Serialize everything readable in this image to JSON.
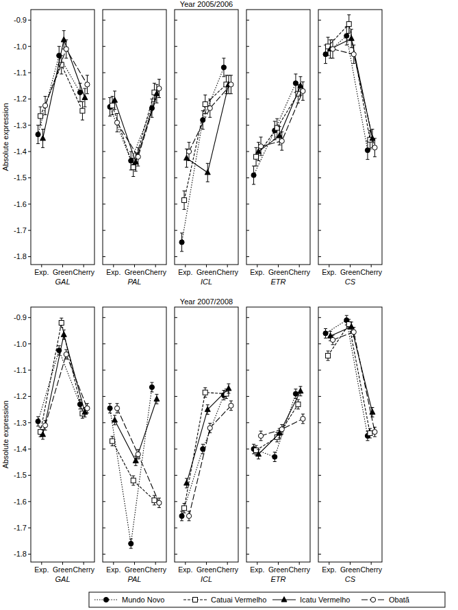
{
  "chart_data": [
    {
      "type": "line",
      "y_label": "Absolute expression",
      "x_label": "GAL",
      "categories": [
        "Exp.",
        "Green",
        "Cherry"
      ],
      "ylim": [
        -1.83,
        -0.86
      ],
      "yticks": [
        -1.8,
        -1.7,
        -1.6,
        -1.5,
        -1.4,
        -1.3,
        -1.2,
        -1.1,
        {
          "value": -1,
          "label": "-1.0"
        },
        -0.9
      ],
      "series": [
        {
          "name": "Mundo Novo",
          "color": "#000000",
          "marker": "filled-circle",
          "line_style": "dotted",
          "values": [
            -1.335,
            -1.035,
            -1.175
          ],
          "errors": [
            0.035,
            0.035,
            0.035
          ]
        },
        {
          "name": "Catuai Vermelho",
          "color": "#000000",
          "marker": "open-square",
          "line_style": "dashed",
          "values": [
            -1.265,
            -1.07,
            -1.245
          ],
          "errors": [
            0.035,
            0.035,
            0.035
          ]
        },
        {
          "name": "Icatu Vermelho",
          "color": "#000000",
          "marker": "filled-triangle",
          "line_style": "solid",
          "values": [
            -1.35,
            -0.975,
            -1.195
          ],
          "errors": [
            0.035,
            0.035,
            0.035
          ]
        },
        {
          "name": "Obatã",
          "color": "#000000",
          "marker": "open-circle",
          "line_style": "long-dash",
          "values": [
            -1.225,
            -1.01,
            -1.145
          ],
          "errors": [
            0.035,
            0.035,
            0.035
          ]
        }
      ]
    },
    {
      "type": "line",
      "x_label": "PAL",
      "categories": [
        "Exp.",
        "Green",
        "Cherry"
      ],
      "ylim": [
        -1.83,
        -0.86
      ],
      "yticks": [
        -1.8,
        -1.7,
        -1.6,
        -1.5,
        -1.4,
        -1.3,
        -1.2,
        -1.1,
        {
          "value": -1,
          "label": "-1.0"
        },
        -0.9
      ],
      "tick_labels": "x",
      "series": [
        {
          "name": "Mundo Novo",
          "color": "#000000",
          "marker": "filled-circle",
          "line_style": "dotted",
          "values": [
            -1.23,
            -1.435,
            -1.235
          ],
          "errors": [
            0.035,
            0.035,
            0.035
          ]
        },
        {
          "name": "Catuai Vermelho",
          "color": "#000000",
          "marker": "open-square",
          "line_style": "dashed",
          "values": [
            -1.225,
            -1.46,
            -1.175
          ],
          "errors": [
            0.035,
            0.035,
            0.035
          ]
        },
        {
          "name": "Icatu Vermelho",
          "color": "#000000",
          "marker": "filled-triangle",
          "line_style": "solid",
          "values": [
            -1.205,
            -1.44,
            -1.18
          ],
          "errors": [
            0.035,
            0.035,
            0.035
          ]
        },
        {
          "name": "Obatã",
          "color": "#000000",
          "marker": "open-circle",
          "line_style": "long-dash",
          "values": [
            -1.29,
            -1.42,
            -1.16
          ],
          "errors": [
            0.035,
            0.035,
            0.035
          ]
        }
      ]
    },
    {
      "type": "line",
      "title": "Year 2005/2006",
      "x_label": "ICL",
      "categories": [
        "Exp.",
        "Green",
        "Cherry"
      ],
      "ylim": [
        -1.83,
        -0.86
      ],
      "yticks": [
        -1.8,
        -1.7,
        -1.6,
        -1.5,
        -1.4,
        -1.3,
        -1.2,
        -1.1,
        {
          "value": -1,
          "label": "-1.0"
        },
        -0.9
      ],
      "tick_labels": "x",
      "series": [
        {
          "name": "Mundo Novo",
          "color": "#000000",
          "marker": "filled-circle",
          "line_style": "dotted",
          "values": [
            -1.745,
            -1.28,
            -1.08
          ],
          "errors": [
            0.035,
            0.035,
            0.035
          ]
        },
        {
          "name": "Catuai Vermelho",
          "color": "#000000",
          "marker": "open-square",
          "line_style": "dashed",
          "values": [
            -1.585,
            -1.22,
            -1.145
          ],
          "errors": [
            0.035,
            0.035,
            0.035
          ]
        },
        {
          "name": "Icatu Vermelho",
          "color": "#000000",
          "marker": "filled-triangle",
          "line_style": "solid",
          "values": [
            -1.425,
            -1.48,
            -1.145
          ],
          "errors": [
            0.035,
            0.035,
            0.035
          ]
        },
        {
          "name": "Obatã",
          "color": "#000000",
          "marker": "open-circle",
          "line_style": "long-dash",
          "values": [
            -1.4,
            -1.235,
            -1.145
          ],
          "errors": [
            0.035,
            0.035,
            0.035
          ]
        }
      ]
    },
    {
      "type": "line",
      "x_label": "ETR",
      "categories": [
        "Exp.",
        "Green",
        "Cherry"
      ],
      "ylim": [
        -1.83,
        -0.86
      ],
      "yticks": [
        -1.8,
        -1.7,
        -1.6,
        -1.5,
        -1.4,
        -1.3,
        -1.2,
        -1.1,
        {
          "value": -1,
          "label": "-1.0"
        },
        -0.9
      ],
      "tick_labels": "x",
      "series": [
        {
          "name": "Mundo Novo",
          "color": "#000000",
          "marker": "filled-circle",
          "line_style": "dotted",
          "values": [
            -1.49,
            -1.32,
            -1.14
          ],
          "errors": [
            0.035,
            0.035,
            0.035
          ]
        },
        {
          "name": "Catuai Vermelho",
          "color": "#000000",
          "marker": "open-square",
          "line_style": "dashed",
          "values": [
            -1.42,
            -1.31,
            -1.18
          ],
          "errors": [
            0.035,
            0.035,
            0.035
          ]
        },
        {
          "name": "Icatu Vermelho",
          "color": "#000000",
          "marker": "filled-triangle",
          "line_style": "solid",
          "values": [
            -1.4,
            -1.34,
            -1.15
          ],
          "errors": [
            0.035,
            0.035,
            0.035
          ]
        },
        {
          "name": "Obatã",
          "color": "#000000",
          "marker": "open-circle",
          "line_style": "long-dash",
          "values": [
            -1.38,
            -1.36,
            -1.17
          ],
          "errors": [
            0.035,
            0.035,
            0.035
          ]
        }
      ]
    },
    {
      "type": "line",
      "x_label": "CS",
      "categories": [
        "Exp.",
        "Green",
        "Cherry"
      ],
      "ylim": [
        -1.83,
        -0.86
      ],
      "yticks": [
        -1.8,
        -1.7,
        -1.6,
        -1.5,
        -1.4,
        -1.3,
        -1.2,
        -1.1,
        {
          "value": -1,
          "label": "-1.0"
        },
        -0.9
      ],
      "tick_labels": "x",
      "series": [
        {
          "name": "Mundo Novo",
          "color": "#000000",
          "marker": "filled-circle",
          "line_style": "dotted",
          "values": [
            -1.03,
            -0.96,
            -1.395
          ],
          "errors": [
            0.035,
            0.035,
            0.035
          ]
        },
        {
          "name": "Catuai Vermelho",
          "color": "#000000",
          "marker": "open-square",
          "line_style": "dashed",
          "values": [
            -1.0,
            -0.915,
            -1.355
          ],
          "errors": [
            0.035,
            0.035,
            0.035
          ]
        },
        {
          "name": "Icatu Vermelho",
          "color": "#000000",
          "marker": "filled-triangle",
          "line_style": "solid",
          "values": [
            -1.01,
            -0.97,
            -1.35
          ],
          "errors": [
            0.035,
            0.035,
            0.035
          ]
        },
        {
          "name": "Obatã",
          "color": "#000000",
          "marker": "open-circle",
          "line_style": "long-dash",
          "values": [
            -1.01,
            -1.03,
            -1.385
          ],
          "errors": [
            0.035,
            0.035,
            0.035
          ]
        }
      ]
    },
    {
      "type": "line",
      "y_label": "Absolute expression",
      "x_label": "GAL",
      "categories": [
        "Exp.",
        "Green",
        "Cherry"
      ],
      "ylim": [
        -1.83,
        -0.86
      ],
      "yticks": [
        -1.8,
        -1.7,
        -1.6,
        -1.5,
        -1.4,
        -1.3,
        -1.2,
        -1.1,
        {
          "value": -1,
          "label": "-1.0"
        },
        -0.9
      ],
      "series": [
        {
          "name": "Mundo Novo",
          "color": "#000000",
          "marker": "filled-circle",
          "line_style": "dotted",
          "values": [
            -1.295,
            -1.025,
            -1.23
          ],
          "errors": [
            0.018,
            0.018,
            0.018
          ]
        },
        {
          "name": "Catuai Vermelho",
          "color": "#000000",
          "marker": "open-square",
          "line_style": "dashed",
          "values": [
            -1.335,
            -0.92,
            -1.265
          ],
          "errors": [
            0.018,
            0.018,
            0.018
          ]
        },
        {
          "name": "Icatu Vermelho",
          "color": "#000000",
          "marker": "filled-triangle",
          "line_style": "solid",
          "values": [
            -1.345,
            -0.965,
            -1.26
          ],
          "errors": [
            0.018,
            0.018,
            0.018
          ]
        },
        {
          "name": "Obatã",
          "color": "#000000",
          "marker": "open-circle",
          "line_style": "long-dash",
          "values": [
            -1.31,
            -1.04,
            -1.245
          ],
          "errors": [
            0.018,
            0.018,
            0.018
          ]
        }
      ]
    },
    {
      "type": "line",
      "x_label": "PAL",
      "categories": [
        "Exp.",
        "Green",
        "Cherry"
      ],
      "ylim": [
        -1.83,
        -0.86
      ],
      "yticks": [
        -1.8,
        -1.7,
        -1.6,
        -1.5,
        -1.4,
        -1.3,
        -1.2,
        -1.1,
        {
          "value": -1,
          "label": "-1.0"
        },
        -0.9
      ],
      "tick_labels": "x",
      "series": [
        {
          "name": "Mundo Novo",
          "color": "#000000",
          "marker": "filled-circle",
          "line_style": "dotted",
          "values": [
            -1.245,
            -1.76,
            -1.165
          ],
          "errors": [
            0.018,
            0.018,
            0.018
          ]
        },
        {
          "name": "Catuai Vermelho",
          "color": "#000000",
          "marker": "open-square",
          "line_style": "dashed",
          "values": [
            -1.37,
            -1.52,
            -1.595
          ],
          "errors": [
            0.018,
            0.018,
            0.018
          ]
        },
        {
          "name": "Icatu Vermelho",
          "color": "#000000",
          "marker": "filled-triangle",
          "line_style": "solid",
          "values": [
            -1.29,
            -1.445,
            -1.21
          ],
          "errors": [
            0.018,
            0.018,
            0.018
          ]
        },
        {
          "name": "Obatã",
          "color": "#000000",
          "marker": "open-circle",
          "line_style": "long-dash",
          "values": [
            -1.245,
            -1.42,
            -1.605
          ],
          "errors": [
            0.018,
            0.018,
            0.018
          ]
        }
      ]
    },
    {
      "type": "line",
      "title": "Year 2007/2008",
      "x_label": "ICL",
      "categories": [
        "Exp.",
        "Green",
        "Cherry"
      ],
      "ylim": [
        -1.83,
        -0.86
      ],
      "yticks": [
        -1.8,
        -1.7,
        -1.6,
        -1.5,
        -1.4,
        -1.3,
        -1.2,
        -1.1,
        {
          "value": -1,
          "label": "-1.0"
        },
        -0.9
      ],
      "tick_labels": "x",
      "series": [
        {
          "name": "Mundo Novo",
          "color": "#000000",
          "marker": "filled-circle",
          "line_style": "dotted",
          "values": [
            -1.655,
            -1.4,
            -1.195
          ],
          "errors": [
            0.018,
            0.018,
            0.018
          ]
        },
        {
          "name": "Catuai Vermelho",
          "color": "#000000",
          "marker": "open-square",
          "line_style": "dashed",
          "values": [
            -1.625,
            -1.185,
            -1.19
          ],
          "errors": [
            0.018,
            0.018,
            0.018
          ]
        },
        {
          "name": "Icatu Vermelho",
          "color": "#000000",
          "marker": "filled-triangle",
          "line_style": "solid",
          "values": [
            -1.53,
            -1.25,
            -1.17
          ],
          "errors": [
            0.018,
            0.018,
            0.018
          ]
        },
        {
          "name": "Obatã",
          "color": "#000000",
          "marker": "open-circle",
          "line_style": "long-dash",
          "values": [
            -1.655,
            -1.32,
            -1.235
          ],
          "errors": [
            0.018,
            0.018,
            0.018
          ]
        }
      ]
    },
    {
      "type": "line",
      "x_label": "ETR",
      "categories": [
        "Exp.",
        "Green",
        "Cherry"
      ],
      "ylim": [
        -1.83,
        -0.86
      ],
      "yticks": [
        -1.8,
        -1.7,
        -1.6,
        -1.5,
        -1.4,
        -1.3,
        -1.2,
        -1.1,
        {
          "value": -1,
          "label": "-1.0"
        },
        -0.9
      ],
      "tick_labels": "x",
      "series": [
        {
          "name": "Mundo Novo",
          "color": "#000000",
          "marker": "filled-circle",
          "line_style": "dotted",
          "values": [
            -1.4,
            -1.43,
            -1.19
          ],
          "errors": [
            0.018,
            0.018,
            0.018
          ]
        },
        {
          "name": "Catuai Vermelho",
          "color": "#000000",
          "marker": "open-square",
          "line_style": "dashed",
          "values": [
            -1.405,
            -1.355,
            -1.23
          ],
          "errors": [
            0.018,
            0.018,
            0.018
          ]
        },
        {
          "name": "Icatu Vermelho",
          "color": "#000000",
          "marker": "filled-triangle",
          "line_style": "solid",
          "values": [
            -1.42,
            -1.34,
            -1.18
          ],
          "errors": [
            0.018,
            0.018,
            0.018
          ]
        },
        {
          "name": "Obatã",
          "color": "#000000",
          "marker": "open-circle",
          "line_style": "long-dash",
          "values": [
            -1.35,
            -1.325,
            -1.285
          ],
          "errors": [
            0.018,
            0.018,
            0.018
          ]
        }
      ]
    },
    {
      "type": "line",
      "x_label": "CS",
      "categories": [
        "Exp.",
        "Green",
        "Cherry"
      ],
      "ylim": [
        -1.83,
        -0.86
      ],
      "yticks": [
        -1.8,
        -1.7,
        -1.6,
        -1.5,
        -1.4,
        -1.3,
        -1.2,
        -1.1,
        {
          "value": -1,
          "label": "-1.0"
        },
        -0.9
      ],
      "tick_labels": "x",
      "legend": "bottom",
      "series": [
        {
          "name": "Mundo Novo",
          "color": "#000000",
          "marker": "filled-circle",
          "line_style": "dotted",
          "values": [
            -0.96,
            -0.91,
            -1.35
          ],
          "errors": [
            0.018,
            0.018,
            0.018
          ]
        },
        {
          "name": "Catuai Vermelho",
          "color": "#000000",
          "marker": "open-square",
          "line_style": "dashed",
          "values": [
            -1.045,
            -0.925,
            -1.34
          ],
          "errors": [
            0.018,
            0.018,
            0.018
          ]
        },
        {
          "name": "Icatu Vermelho",
          "color": "#000000",
          "marker": "filled-triangle",
          "line_style": "solid",
          "values": [
            -0.97,
            -0.935,
            -1.26
          ],
          "errors": [
            0.018,
            0.018,
            0.018
          ]
        },
        {
          "name": "Obatã",
          "color": "#000000",
          "marker": "open-circle",
          "line_style": "long-dash",
          "values": [
            -0.985,
            -0.955,
            -1.335
          ],
          "errors": [
            0.018,
            0.018,
            0.018
          ]
        }
      ]
    }
  ]
}
